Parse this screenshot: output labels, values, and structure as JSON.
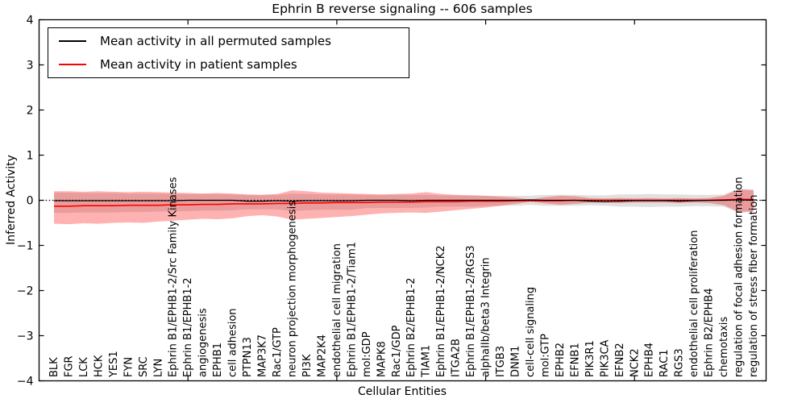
{
  "header": {
    "window_title": "Ephrin B reverse signaling -- 606 samples"
  },
  "colors": {
    "permuted_line": "#000000",
    "patient_line": "#ff0000",
    "patient_band": "rgba(255,0,0,0.30)",
    "permuted_band": "rgba(0,0,0,0.12)",
    "axis": "#000000",
    "background": "#ffffff"
  },
  "chart_data": {
    "type": "line",
    "title": "Ephrin B reverse signaling -- 606 samples",
    "xlabel": "Cellular Entities",
    "ylabel": "Inferred Activity",
    "ylim": [
      -4,
      4
    ],
    "yticks": [
      4,
      3,
      2,
      1,
      0,
      -1,
      -2,
      -3,
      -4
    ],
    "ytick_labels": [
      "4",
      "3",
      "2",
      "1",
      "0",
      "−1",
      "−2",
      "−3",
      "−4"
    ],
    "x_major_tick_indices": [
      9,
      19,
      29,
      39
    ],
    "grid": false,
    "legend_position": "upper left",
    "zero_line": true,
    "categories": [
      "BLK",
      "FGR",
      "LCK",
      "HCK",
      "YES1",
      "FYN",
      "SRC",
      "LYN",
      "Ephrin B1/EPHB1-2/Src Family Kinases",
      "Ephrin B1/EPHB1-2",
      "angiogenesis",
      "EPHB1",
      "cell adhesion",
      "PTPN13",
      "MAP3K7",
      "Rac1/GTP",
      "neuron projection morphogenesis",
      "PI3K",
      "MAP2K4",
      "endothelial cell migration",
      "Ephrin B1/EPHB1-2/Tiam1",
      "mol:GDP",
      "MAPK8",
      "Rac1/GDP",
      "Ephrin B2/EPHB1-2",
      "TIAM1",
      "Ephrin B1/EPHB1-2/NCK2",
      "ITGA2B",
      "Ephrin B1/EPHB1-2/RGS3",
      "alphaIIb/beta3 Integrin",
      "ITGB3",
      "DNM1",
      "cell-cell signaling",
      "mol:GTP",
      "EPHB2",
      "EFNB1",
      "PIK3R1",
      "PIK3CA",
      "EFNB2",
      "NCK2",
      "EPHB4",
      "RAC1",
      "RGS3",
      "endothelial cell proliferation",
      "Ephrin B2/EPHB4",
      "chemotaxis",
      "regulation of focal adhesion formation",
      "regulation of stress fiber formation"
    ],
    "series": [
      {
        "name": "Mean activity in all permuted samples",
        "color": "#000000",
        "values": [
          -0.01,
          -0.01,
          -0.01,
          -0.01,
          -0.01,
          -0.01,
          -0.01,
          -0.01,
          -0.01,
          0,
          0,
          0,
          0,
          -0.02,
          -0.02,
          -0.01,
          -0.02,
          -0.01,
          -0.01,
          -0.01,
          -0.01,
          0,
          0,
          0,
          -0.01,
          0,
          0,
          0,
          0,
          0,
          0,
          0,
          0.01,
          0,
          0,
          0,
          -0.02,
          -0.03,
          -0.02,
          -0.01,
          -0.01,
          -0.01,
          -0.02,
          -0.01,
          0,
          0,
          0.01,
          0
        ]
      },
      {
        "name": "Mean activity in patient samples",
        "color": "#ff0000",
        "values": [
          -0.13,
          -0.13,
          -0.12,
          -0.12,
          -0.12,
          -0.11,
          -0.11,
          -0.11,
          -0.1,
          -0.1,
          -0.09,
          -0.09,
          -0.08,
          -0.08,
          -0.08,
          -0.07,
          -0.07,
          -0.06,
          -0.06,
          -0.05,
          -0.05,
          -0.05,
          -0.04,
          -0.04,
          -0.04,
          -0.03,
          -0.03,
          -0.03,
          -0.02,
          -0.02,
          -0.02,
          -0.01,
          -0.01,
          -0.01,
          -0.01,
          0,
          0,
          0,
          0,
          0,
          0,
          0,
          0,
          0,
          0,
          0.01,
          0.02,
          0.02
        ]
      }
    ],
    "bands": [
      {
        "name": "permuted samples std band",
        "color": "rgba(0,0,0,0.12)",
        "upper": [
          0.17,
          0.17,
          0.16,
          0.16,
          0.16,
          0.15,
          0.15,
          0.15,
          0.14,
          0.14,
          0.14,
          0.14,
          0.13,
          0.12,
          0.12,
          0.12,
          0.15,
          0.14,
          0.13,
          0.13,
          0.13,
          0.12,
          0.12,
          0.12,
          0.12,
          0.12,
          0.11,
          0.11,
          0.11,
          0.1,
          0.1,
          0.1,
          0.1,
          0.12,
          0.12,
          0.12,
          0.11,
          0.11,
          0.13,
          0.13,
          0.14,
          0.13,
          0.13,
          0.12,
          0.12,
          0.13,
          0.26,
          0.24
        ],
        "lower": [
          -0.28,
          -0.28,
          -0.27,
          -0.27,
          -0.27,
          -0.26,
          -0.26,
          -0.25,
          -0.24,
          -0.24,
          -0.23,
          -0.23,
          -0.22,
          -0.2,
          -0.2,
          -0.2,
          -0.24,
          -0.22,
          -0.21,
          -0.21,
          -0.21,
          -0.17,
          -0.17,
          -0.17,
          -0.17,
          -0.16,
          -0.14,
          -0.14,
          -0.14,
          -0.13,
          -0.12,
          -0.12,
          -0.1,
          -0.12,
          -0.12,
          -0.12,
          -0.11,
          -0.12,
          -0.14,
          -0.14,
          -0.15,
          -0.14,
          -0.14,
          -0.13,
          -0.13,
          -0.14,
          -0.28,
          -0.26
        ]
      },
      {
        "name": "patient samples std band",
        "color": "rgba(255,0,0,0.30)",
        "upper": [
          0.2,
          0.2,
          0.19,
          0.2,
          0.19,
          0.18,
          0.19,
          0.18,
          0.17,
          0.16,
          0.15,
          0.16,
          0.15,
          0.13,
          0.12,
          0.14,
          0.22,
          0.2,
          0.17,
          0.16,
          0.15,
          0.14,
          0.13,
          0.14,
          0.15,
          0.18,
          0.14,
          0.12,
          0.11,
          0.1,
          0.08,
          0.06,
          0.02,
          0.07,
          0.1,
          0.09,
          0.05,
          0.04,
          0.05,
          0.04,
          0.05,
          0.04,
          0.05,
          0.04,
          0.05,
          0.1,
          0.24,
          0.22
        ],
        "lower": [
          -0.52,
          -0.53,
          -0.51,
          -0.52,
          -0.5,
          -0.49,
          -0.5,
          -0.47,
          -0.45,
          -0.43,
          -0.41,
          -0.42,
          -0.4,
          -0.35,
          -0.33,
          -0.36,
          -0.43,
          -0.41,
          -0.39,
          -0.37,
          -0.35,
          -0.32,
          -0.29,
          -0.28,
          -0.27,
          -0.28,
          -0.25,
          -0.22,
          -0.19,
          -0.16,
          -0.12,
          -0.08,
          -0.03,
          -0.07,
          -0.1,
          -0.08,
          -0.05,
          -0.05,
          -0.06,
          -0.05,
          -0.05,
          -0.05,
          -0.06,
          -0.05,
          -0.06,
          -0.11,
          -0.26,
          -0.24
        ]
      }
    ]
  },
  "legend": {
    "items": [
      {
        "label": "Mean activity in all permuted samples",
        "color": "#000000"
      },
      {
        "label": "Mean activity in patient samples",
        "color": "#ff0000"
      }
    ]
  }
}
